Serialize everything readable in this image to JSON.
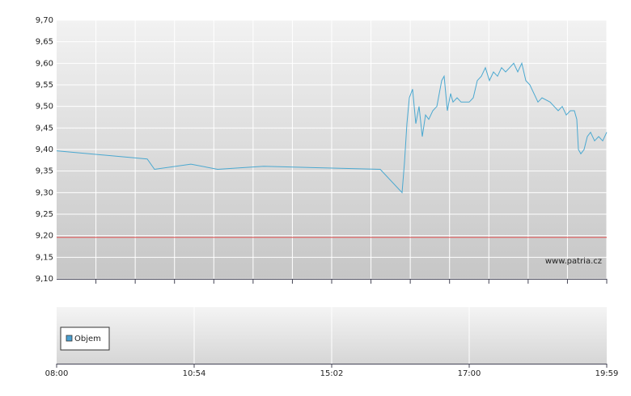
{
  "chart_data": [
    {
      "type": "line",
      "xlim": [
        0,
        680
      ],
      "ylim": [
        9.1,
        9.7
      ],
      "yticks": [
        {
          "value": 9.1,
          "label": "9,10"
        },
        {
          "value": 9.15,
          "label": "9,15"
        },
        {
          "value": 9.2,
          "label": "9,20"
        },
        {
          "value": 9.25,
          "label": "9,25"
        },
        {
          "value": 9.3,
          "label": "9,30"
        },
        {
          "value": 9.35,
          "label": "9,35"
        },
        {
          "value": 9.4,
          "label": "9,40"
        },
        {
          "value": 9.45,
          "label": "9,45"
        },
        {
          "value": 9.5,
          "label": "9,50"
        },
        {
          "value": 9.55,
          "label": "9,55"
        },
        {
          "value": 9.6,
          "label": "9,60"
        },
        {
          "value": 9.65,
          "label": "9,65"
        },
        {
          "value": 9.7,
          "label": "9,70"
        }
      ],
      "grid": true,
      "reference_line": {
        "value": 9.196,
        "color": "#e05050"
      },
      "watermark": "www.patria.cz",
      "color": "#4aa8d0",
      "x": [
        0,
        112,
        121,
        166,
        199,
        256,
        400,
        427,
        430,
        433,
        436,
        440,
        444,
        448,
        452,
        456,
        460,
        465,
        470,
        476,
        479,
        483,
        487,
        490,
        495,
        500,
        510,
        515,
        520,
        525,
        530,
        535,
        540,
        545,
        550,
        555,
        560,
        565,
        570,
        575,
        580,
        585,
        590,
        595,
        600,
        610,
        615,
        620,
        625,
        630,
        635,
        640,
        643,
        645,
        648,
        652,
        656,
        660,
        665,
        670,
        675,
        680
      ],
      "values": [
        9.397,
        9.378,
        9.354,
        9.366,
        9.354,
        9.361,
        9.354,
        9.3,
        9.37,
        9.46,
        9.52,
        9.54,
        9.46,
        9.5,
        9.43,
        9.48,
        9.47,
        9.49,
        9.5,
        9.56,
        9.57,
        9.49,
        9.53,
        9.51,
        9.52,
        9.51,
        9.51,
        9.52,
        9.56,
        9.57,
        9.59,
        9.56,
        9.58,
        9.57,
        9.59,
        9.58,
        9.59,
        9.6,
        9.58,
        9.6,
        9.56,
        9.55,
        9.53,
        9.51,
        9.52,
        9.51,
        9.5,
        9.49,
        9.5,
        9.48,
        9.49,
        9.49,
        9.47,
        9.4,
        9.39,
        9.4,
        9.43,
        9.44,
        9.42,
        9.43,
        9.42,
        9.44
      ]
    },
    {
      "type": "bar",
      "xlim": [
        0,
        680
      ],
      "xticks": [
        {
          "value": 0,
          "label": "08:00"
        },
        {
          "value": 170,
          "label": "10:54"
        },
        {
          "value": 340,
          "label": "15:02"
        },
        {
          "value": 510,
          "label": "17:00"
        },
        {
          "value": 680,
          "label": "19:59"
        }
      ],
      "grid": true,
      "series": [
        {
          "name": "Objem",
          "color": "#4a9fd0",
          "values": []
        }
      ]
    }
  ]
}
